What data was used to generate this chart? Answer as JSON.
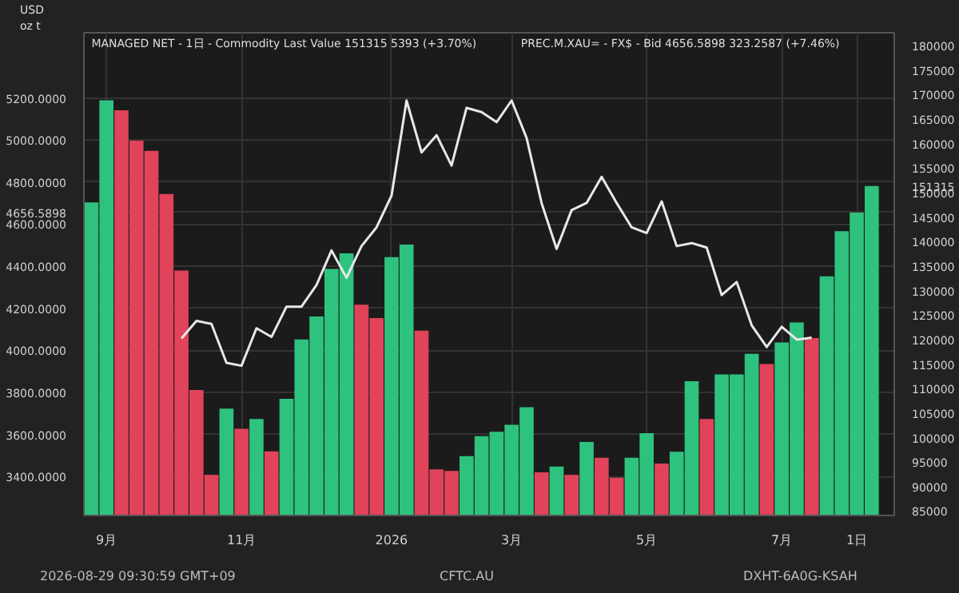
{
  "chart_data": {
    "type": "bar",
    "annotations": [
      "MANAGED NET - 1日 - Commodity Last Value  151315  5393 (+3.70%)",
      "PREC.M.XAU= - FX$ - Bid  4656.5898  323.2587 (+7.46%)",
      "2026-08-29 09:30:59 GMT+09",
      "CFTC.AU",
      "DXHT-6A0G-KSAH",
      "USD",
      "oz t"
    ],
    "categories": [
      null,
      "9月",
      null,
      null,
      null,
      null,
      null,
      null,
      null,
      null,
      "11月",
      null,
      null,
      null,
      null,
      null,
      null,
      null,
      null,
      null,
      "2026",
      null,
      null,
      null,
      null,
      null,
      null,
      null,
      "3月",
      null,
      null,
      null,
      null,
      null,
      null,
      null,
      null,
      "5月",
      null,
      null,
      null,
      null,
      null,
      null,
      null,
      null,
      "7月",
      null,
      null,
      null,
      null,
      "1日",
      null
    ],
    "ylim": [
      3215,
      5510
    ],
    "yticks": [
      {
        "value": 3400,
        "label": "3400.0000"
      },
      {
        "value": 3600,
        "label": "3600.0000"
      },
      {
        "value": 3800,
        "label": "3800.0000"
      },
      {
        "value": 4000,
        "label": "4000.0000"
      },
      {
        "value": 4200,
        "label": "4200.0000"
      },
      {
        "value": 4400,
        "label": "4400.0000"
      },
      {
        "value": 4600,
        "label": "4600.0000"
      },
      {
        "value": 4656.5898,
        "label": "4656.5898"
      },
      {
        "value": 4800,
        "label": "4800.0000"
      },
      {
        "value": 5000,
        "label": "5000.0000"
      },
      {
        "value": 5200,
        "label": "5200.0000"
      }
    ],
    "y2lim": [
      84100,
      182600
    ],
    "y2ticks": [
      85000,
      90000,
      95000,
      100000,
      105000,
      110000,
      115000,
      120000,
      125000,
      130000,
      135000,
      140000,
      145000,
      150000,
      151315,
      155000,
      160000,
      165000,
      170000,
      175000,
      180000
    ],
    "grid": true,
    "series": [
      {
        "axis": "y2",
        "values": [
          148000,
          168800,
          166800,
          160600,
          158500,
          149700,
          134100,
          109700,
          92400,
          105900,
          101800,
          103800,
          97200,
          107900,
          120000,
          124700,
          134400,
          137600,
          127100,
          124400,
          136800,
          139400,
          121800,
          93500,
          93200,
          96200,
          100300,
          101200,
          102600,
          106200,
          92900,
          94100,
          92400,
          99100,
          95900,
          91800,
          95900,
          100900,
          94700,
          97100,
          111500,
          103800,
          112900,
          112900,
          117100,
          115000,
          119400,
          123500,
          120300,
          132900,
          142100,
          145900,
          151315
        ],
        "colors": [
          "#2ec27e",
          "#2ec27e",
          "#e0435a",
          "#e0435a",
          "#e0435a",
          "#e0435a",
          "#e0435a",
          "#e0435a",
          "#e0435a",
          "#2ec27e",
          "#e0435a",
          "#2ec27e",
          "#e0435a",
          "#2ec27e",
          "#2ec27e",
          "#2ec27e",
          "#2ec27e",
          "#2ec27e",
          "#e0435a",
          "#e0435a",
          "#2ec27e",
          "#2ec27e",
          "#e0435a",
          "#e0435a",
          "#e0435a",
          "#2ec27e",
          "#2ec27e",
          "#2ec27e",
          "#2ec27e",
          "#2ec27e",
          "#e0435a",
          "#2ec27e",
          "#e0435a",
          "#2ec27e",
          "#e0435a",
          "#e0435a",
          "#2ec27e",
          "#2ec27e",
          "#e0435a",
          "#2ec27e",
          "#2ec27e",
          "#e0435a",
          "#2ec27e",
          "#2ec27e",
          "#2ec27e",
          "#e0435a",
          "#2ec27e",
          "#2ec27e",
          "#e0435a",
          "#2ec27e",
          "#2ec27e",
          "#2ec27e",
          "#2ec27e"
        ]
      },
      {
        "type": "line",
        "color": "#e8e8e8",
        "values": [
          null,
          null,
          null,
          null,
          null,
          null,
          4057,
          4140,
          4126,
          3941,
          3927,
          4105,
          4064,
          4208,
          4208,
          4311,
          4475,
          4345,
          4496,
          4585,
          4736,
          5188,
          4941,
          5023,
          4879,
          5153,
          5133,
          5085,
          5188,
          5010,
          4700,
          4482,
          4667,
          4701,
          4825,
          4701,
          4585,
          4558,
          4708,
          4496,
          4510,
          4489,
          4263,
          4325,
          4119,
          4016,
          4112,
          4051,
          4060,
          null,
          null,
          null,
          null
        ]
      }
    ]
  }
}
